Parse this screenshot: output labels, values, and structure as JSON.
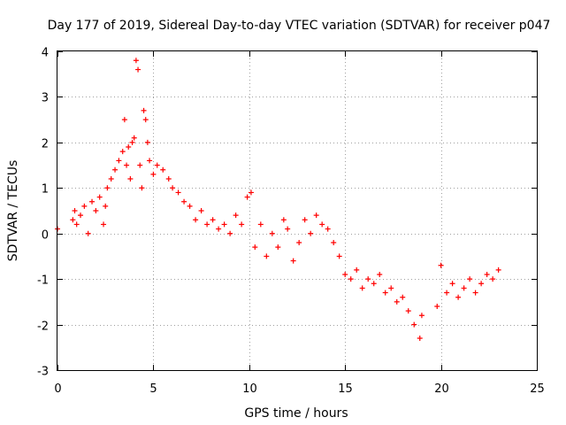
{
  "chart_data": {
    "type": "scatter",
    "title": "Day 177 of 2019, Sidereal Day-to-day VTEC variation (SDTVAR) for receiver p047",
    "xlabel": "GPS time / hours",
    "ylabel": "SDTVAR / TECUs",
    "xlim": [
      0,
      25
    ],
    "ylim": [
      -3,
      4
    ],
    "xticks": [
      "0",
      "5",
      "10",
      "15",
      "20",
      "25"
    ],
    "yticks": [
      "-3",
      "-2",
      "-1",
      "0",
      "1",
      "2",
      "3",
      "4"
    ],
    "grid": true,
    "marker": "plus",
    "color": "#ff0000",
    "series": [
      {
        "name": "p047",
        "x": [
          0.0,
          0.8,
          0.9,
          1.0,
          1.2,
          1.4,
          1.6,
          1.8,
          2.0,
          2.2,
          2.4,
          2.5,
          2.6,
          2.8,
          3.0,
          3.2,
          3.4,
          3.5,
          3.6,
          3.7,
          3.8,
          3.9,
          4.0,
          4.1,
          4.2,
          4.3,
          4.4,
          4.5,
          4.6,
          4.7,
          4.8,
          5.0,
          5.2,
          5.5,
          5.8,
          6.0,
          6.3,
          6.6,
          6.9,
          7.2,
          7.5,
          7.8,
          8.1,
          8.4,
          8.7,
          9.0,
          9.3,
          9.6,
          9.9,
          10.1,
          10.3,
          10.6,
          10.9,
          11.2,
          11.5,
          11.8,
          12.0,
          12.3,
          12.6,
          12.9,
          13.2,
          13.5,
          13.8,
          14.1,
          14.4,
          14.7,
          15.0,
          15.3,
          15.6,
          15.9,
          16.2,
          16.5,
          16.8,
          17.1,
          17.4,
          17.7,
          18.0,
          18.3,
          18.6,
          18.9,
          19.0,
          19.8,
          20.0,
          20.3,
          20.6,
          20.9,
          21.2,
          21.5,
          21.8,
          22.1,
          22.4,
          22.7,
          23.0
        ],
        "y": [
          0.1,
          0.3,
          0.5,
          0.2,
          0.4,
          0.6,
          0.0,
          0.7,
          0.5,
          0.8,
          0.2,
          0.6,
          1.0,
          1.2,
          1.4,
          1.6,
          1.8,
          2.5,
          1.5,
          1.9,
          1.2,
          2.0,
          2.1,
          3.8,
          3.6,
          1.5,
          1.0,
          2.7,
          2.5,
          2.0,
          1.6,
          1.3,
          1.5,
          1.4,
          1.2,
          1.0,
          0.9,
          0.7,
          0.6,
          0.3,
          0.5,
          0.2,
          0.3,
          0.1,
          0.2,
          0.0,
          0.4,
          0.2,
          0.8,
          0.9,
          -0.3,
          0.2,
          -0.5,
          0.0,
          -0.3,
          0.3,
          0.1,
          -0.6,
          -0.2,
          0.3,
          0.0,
          0.4,
          0.2,
          0.1,
          -0.2,
          -0.5,
          -0.9,
          -1.0,
          -0.8,
          -1.2,
          -1.0,
          -1.1,
          -0.9,
          -1.3,
          -1.2,
          -1.5,
          -1.4,
          -1.7,
          -2.0,
          -2.3,
          -1.8,
          -1.6,
          -0.7,
          -1.3,
          -1.1,
          -1.4,
          -1.2,
          -1.0,
          -1.3,
          -1.1,
          -0.9,
          -1.0,
          -0.8
        ]
      }
    ]
  }
}
